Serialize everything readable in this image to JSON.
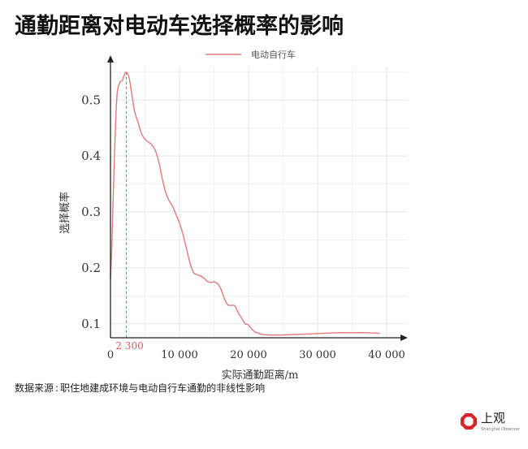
{
  "title": "通勤距离对电动车选择概率的影响",
  "source": {
    "label": "数据来源",
    "separator": ":",
    "text": "职住地建成环境与电动自行车通勤的非线性影响"
  },
  "logo": {
    "name": "上观",
    "subtitle": "Shanghai Observer",
    "color": "#d7262b"
  },
  "chart_data": {
    "type": "line",
    "xlabel": "实际通勤距离/m",
    "ylabel": "选择概率",
    "xlim": [
      0,
      40000
    ],
    "ylim": [
      0.075,
      0.56
    ],
    "x_ticks": [
      0,
      10000,
      20000,
      30000,
      40000
    ],
    "x_tick_labels": [
      "0",
      "10 000",
      "20 000",
      "30 000",
      "40 000"
    ],
    "y_ticks": [
      0.1,
      0.2,
      0.3,
      0.4,
      0.5
    ],
    "y_tick_labels": [
      "0.1",
      "0.2",
      "0.3",
      "0.4",
      "0.5"
    ],
    "grid": true,
    "legend_position": "top",
    "annotation": {
      "x": 2300,
      "label": "2 300",
      "color": "#d9575c"
    },
    "series": [
      {
        "name": "电动自行车",
        "color": "#e07a7d",
        "x": [
          0,
          200,
          500,
          900,
          1300,
          1700,
          2000,
          2300,
          2700,
          3100,
          3500,
          4000,
          4500,
          5000,
          5500,
          6000,
          6500,
          7000,
          7500,
          8000,
          8500,
          9000,
          9500,
          10000,
          10500,
          11000,
          11500,
          12000,
          12500,
          13000,
          13500,
          14000,
          14500,
          15000,
          15500,
          16000,
          16500,
          17000,
          17500,
          18000,
          18500,
          19000,
          19500,
          20000,
          20500,
          21000,
          22000,
          23000,
          25000,
          27000,
          29000,
          31000,
          33000,
          35000,
          37000,
          39000
        ],
        "y": [
          0.18,
          0.24,
          0.37,
          0.5,
          0.53,
          0.535,
          0.545,
          0.55,
          0.54,
          0.51,
          0.48,
          0.46,
          0.44,
          0.43,
          0.425,
          0.42,
          0.41,
          0.39,
          0.36,
          0.335,
          0.32,
          0.31,
          0.295,
          0.28,
          0.26,
          0.235,
          0.21,
          0.192,
          0.188,
          0.186,
          0.182,
          0.176,
          0.174,
          0.175,
          0.172,
          0.162,
          0.145,
          0.134,
          0.133,
          0.132,
          0.12,
          0.11,
          0.1,
          0.098,
          0.09,
          0.085,
          0.081,
          0.08,
          0.08,
          0.081,
          0.082,
          0.083,
          0.084,
          0.084,
          0.084,
          0.083
        ]
      }
    ]
  }
}
